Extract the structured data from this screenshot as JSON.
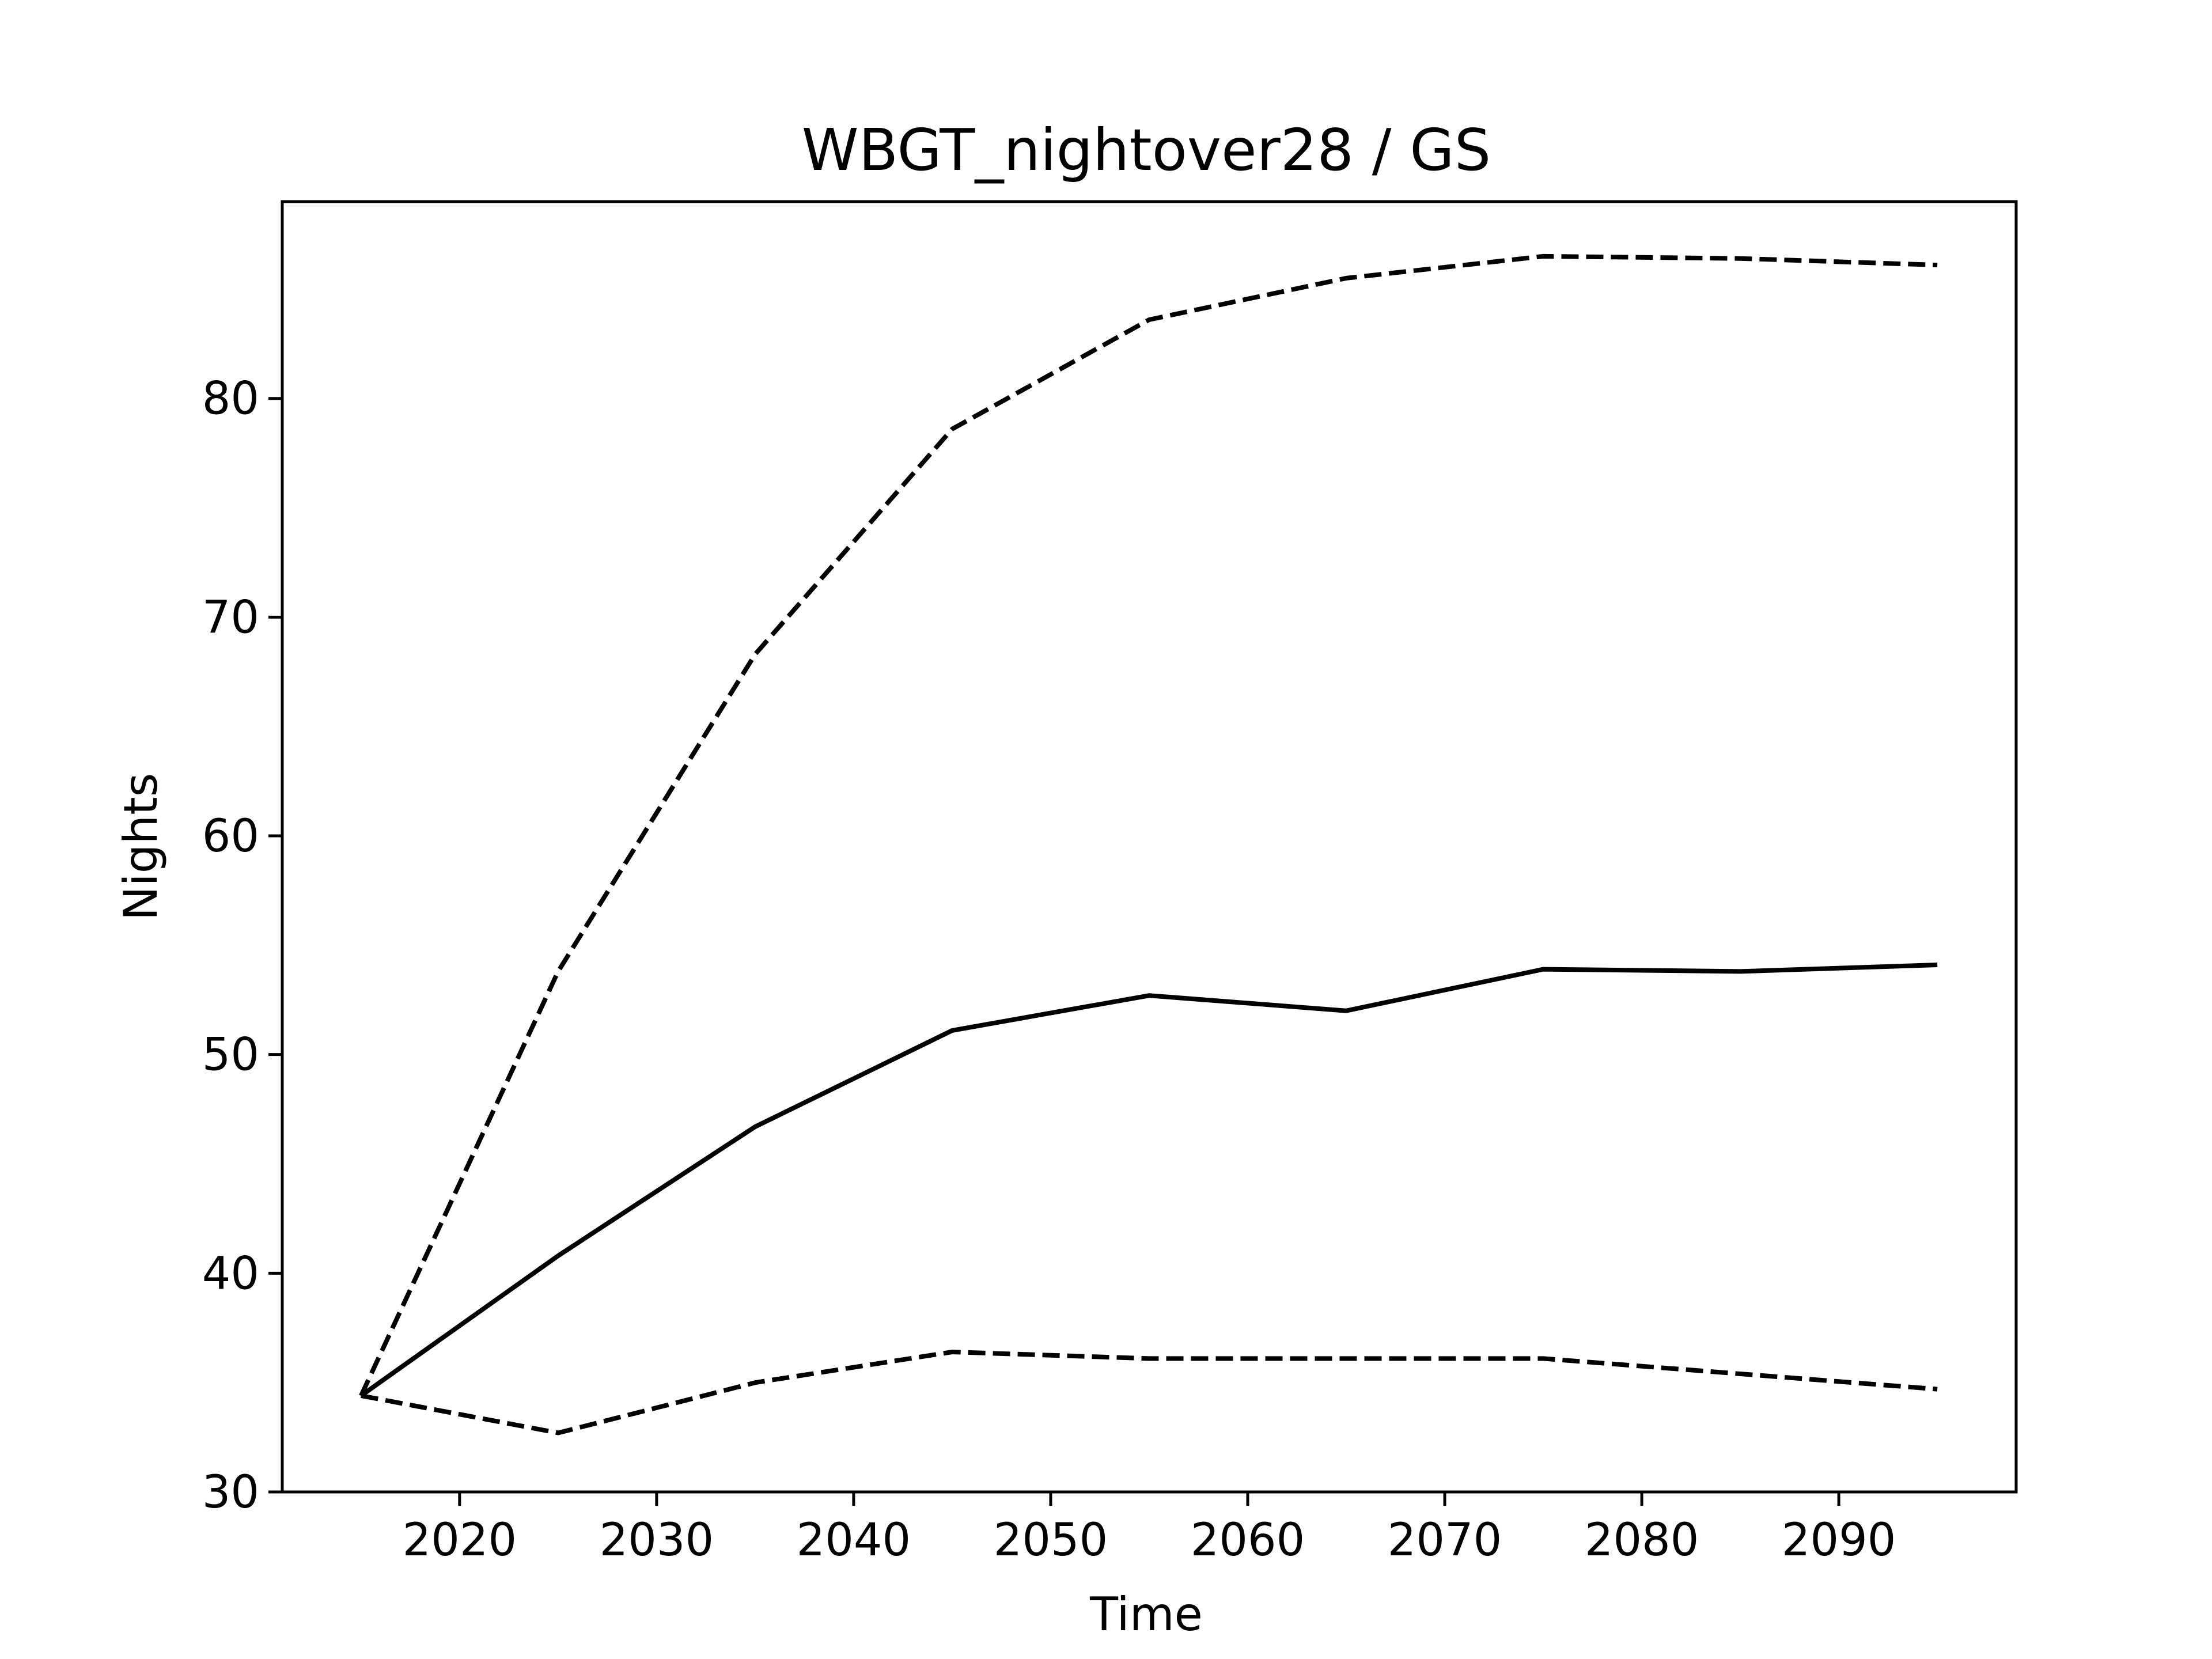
{
  "chart_data": {
    "type": "line",
    "title": "WBGT_nightover28 / GS",
    "xlabel": "Time",
    "ylabel": "Nights",
    "xlim": [
      2011,
      2099
    ],
    "ylim": [
      30,
      89
    ],
    "xticks": [
      2020,
      2030,
      2040,
      2050,
      2060,
      2070,
      2080,
      2090
    ],
    "yticks": [
      30,
      40,
      50,
      60,
      70,
      80
    ],
    "grid": false,
    "legend": "none",
    "x": [
      2015,
      2025,
      2035,
      2045,
      2055,
      2065,
      2075,
      2085,
      2095
    ],
    "series": [
      {
        "style": "dashed",
        "color": "#000000",
        "values": [
          34.4,
          53.8,
          68.3,
          78.6,
          83.6,
          85.5,
          86.5,
          86.4,
          86.1
        ]
      },
      {
        "style": "solid",
        "color": "#000000",
        "values": [
          34.4,
          40.8,
          46.7,
          51.1,
          52.7,
          52.0,
          53.9,
          53.8,
          54.1
        ]
      },
      {
        "style": "dashed",
        "color": "#000000",
        "values": [
          34.4,
          32.7,
          35.0,
          36.4,
          36.1,
          36.1,
          36.1,
          35.4,
          34.7
        ]
      }
    ]
  }
}
